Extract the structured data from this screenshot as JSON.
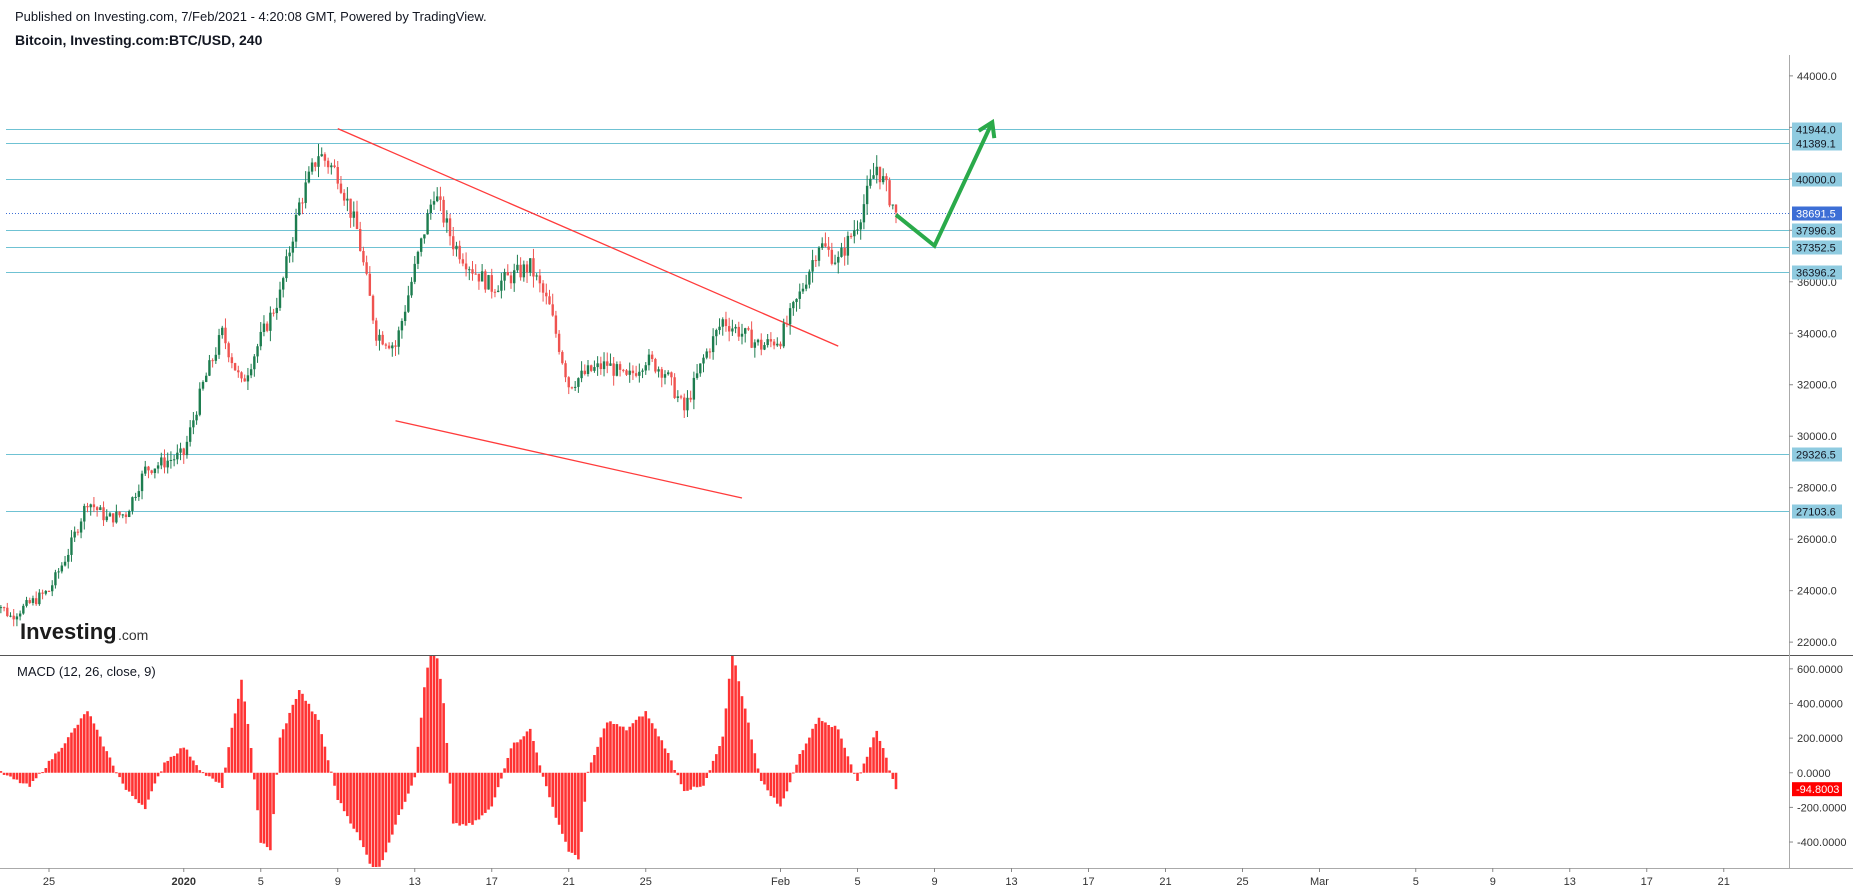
{
  "header": {
    "published": "Published on Investing.com, 7/Feb/2021 - 4:20:08 GMT, Powered by TradingView.",
    "symbol": "Bitcoin, Investing.com:BTC/USD, 240"
  },
  "logo": {
    "text": "Investing",
    "suffix": ".com"
  },
  "chart_data": [
    {
      "type": "candlestick",
      "title": "Bitcoin, Investing.com:BTC/USD, 240",
      "ylim": [
        21500,
        44500
      ],
      "y_ticks": [
        "44000.0",
        "42000.0",
        "40000.0",
        "38000.0",
        "36000.0",
        "34000.0",
        "32000.0",
        "30000.0",
        "28000.0",
        "26000.0",
        "24000.0",
        "22000.0"
      ],
      "x_ticks": [
        "25",
        "2020",
        "5",
        "9",
        "13",
        "17",
        "21",
        "25",
        "Feb",
        "5",
        "9",
        "13",
        "17",
        "21",
        "25",
        "Mar",
        "5",
        "9",
        "13",
        "17",
        "21",
        "25"
      ],
      "horizontal_levels": [
        {
          "label": "41944.0",
          "value": 41944.0
        },
        {
          "label": "41389.1",
          "value": 41389.1
        },
        {
          "label": "40000.0",
          "value": 40000.0
        },
        {
          "label": "37996.8",
          "value": 37996.8
        },
        {
          "label": "37352.5",
          "value": 37352.5
        },
        {
          "label": "36396.2",
          "value": 36396.2
        },
        {
          "label": "29326.5",
          "value": 29326.5
        },
        {
          "label": "27103.6",
          "value": 27103.6
        }
      ],
      "last_price": {
        "label": "38691.5",
        "value": 38691.5
      },
      "trendlines": [
        {
          "name": "upper",
          "from": {
            "x": "9",
            "y": 41950
          },
          "to": {
            "x": "Feb 4",
            "y": 33500
          }
        },
        {
          "name": "lower",
          "from": {
            "x": "12",
            "y": 30600
          },
          "to": {
            "x": "Jan 30",
            "y": 27600
          }
        }
      ],
      "projection_arrow": {
        "points": [
          {
            "x": "Feb 7",
            "y": 38600
          },
          {
            "x": "9",
            "y": 37400
          },
          {
            "x": "12",
            "y": 42200
          }
        ]
      },
      "price_path": [
        {
          "x": "Dec 22",
          "y": 23800
        },
        {
          "x": "Dec 23",
          "y": 23000
        },
        {
          "x": "Dec 25",
          "y": 24000
        },
        {
          "x": "Dec 26",
          "y": 25500
        },
        {
          "x": "Dec 27",
          "y": 27500
        },
        {
          "x": "Dec 28",
          "y": 26800
        },
        {
          "x": "Dec 29",
          "y": 27000
        },
        {
          "x": "Dec 30",
          "y": 28700
        },
        {
          "x": "Dec 31",
          "y": 29000
        },
        {
          "x": "Jan 1",
          "y": 29300
        },
        {
          "x": "Jan 2",
          "y": 32000
        },
        {
          "x": "Jan 3",
          "y": 34000
        },
        {
          "x": "Jan 4",
          "y": 32000
        },
        {
          "x": "Jan 5",
          "y": 33800
        },
        {
          "x": "Jan 6",
          "y": 35500
        },
        {
          "x": "Jan 7",
          "y": 39000
        },
        {
          "x": "Jan 8",
          "y": 41000
        },
        {
          "x": "Jan 9",
          "y": 40200
        },
        {
          "x": "Jan 10",
          "y": 38000
        },
        {
          "x": "Jan 11",
          "y": 34000
        },
        {
          "x": "Jan 12",
          "y": 33500
        },
        {
          "x": "Jan 13",
          "y": 36500
        },
        {
          "x": "Jan 14",
          "y": 39500
        },
        {
          "x": "Jan 15",
          "y": 37500
        },
        {
          "x": "Jan 16",
          "y": 36500
        },
        {
          "x": "Jan 17",
          "y": 35800
        },
        {
          "x": "Jan 18",
          "y": 36200
        },
        {
          "x": "Jan 19",
          "y": 36600
        },
        {
          "x": "Jan 20",
          "y": 35000
        },
        {
          "x": "Jan 21",
          "y": 32000
        },
        {
          "x": "Jan 22",
          "y": 32500
        },
        {
          "x": "Jan 23",
          "y": 32800
        },
        {
          "x": "Jan 24",
          "y": 32200
        },
        {
          "x": "Jan 25",
          "y": 33000
        },
        {
          "x": "Jan 26",
          "y": 32500
        },
        {
          "x": "Jan 27",
          "y": 31000
        },
        {
          "x": "Jan 28",
          "y": 33000
        },
        {
          "x": "Jan 29",
          "y": 34500
        },
        {
          "x": "Jan 30",
          "y": 34000
        },
        {
          "x": "Jan 31",
          "y": 33500
        },
        {
          "x": "Feb 1",
          "y": 33800
        },
        {
          "x": "Feb 2",
          "y": 35500
        },
        {
          "x": "Feb 3",
          "y": 37500
        },
        {
          "x": "Feb 4",
          "y": 36800
        },
        {
          "x": "Feb 5",
          "y": 38300
        },
        {
          "x": "Feb 6",
          "y": 40500
        },
        {
          "x": "Feb 7",
          "y": 38691.5
        }
      ]
    },
    {
      "type": "bar",
      "title": "MACD (12, 26, close, 9)",
      "ylim": [
        -550,
        680
      ],
      "y_ticks": [
        "600.0000",
        "400.0000",
        "200.0000",
        "0.0000",
        "-200.0000",
        "-400.0000"
      ],
      "last_value": {
        "label": "-94.8003",
        "value": -94.8003
      },
      "histogram_profile": [
        {
          "x": "Dec 22",
          "y": 30
        },
        {
          "x": "Dec 23",
          "y": -30
        },
        {
          "x": "Dec 24",
          "y": -80
        },
        {
          "x": "Dec 25",
          "y": 60
        },
        {
          "x": "Dec 26",
          "y": 200
        },
        {
          "x": "Dec 27",
          "y": 360
        },
        {
          "x": "Dec 28",
          "y": 120
        },
        {
          "x": "Dec 29",
          "y": -100
        },
        {
          "x": "Dec 30",
          "y": -200
        },
        {
          "x": "Dec 31",
          "y": 60
        },
        {
          "x": "Jan 1",
          "y": 150
        },
        {
          "x": "Jan 2",
          "y": 0
        },
        {
          "x": "Jan 3",
          "y": -80
        },
        {
          "x": "Jan 3.5",
          "y": 250
        },
        {
          "x": "Jan 4",
          "y": 530
        },
        {
          "x": "Jan 4.5",
          "y": 150
        },
        {
          "x": "Jan 5",
          "y": -400
        },
        {
          "x": "Jan 5.5",
          "y": -450
        },
        {
          "x": "Jan 6",
          "y": 200
        },
        {
          "x": "Jan 7",
          "y": 480
        },
        {
          "x": "Jan 8",
          "y": 300
        },
        {
          "x": "Jan 9",
          "y": -150
        },
        {
          "x": "Jan 10",
          "y": -350
        },
        {
          "x": "Jan 11",
          "y": -600
        },
        {
          "x": "Jan 12",
          "y": -300
        },
        {
          "x": "Jan 13",
          "y": -20
        },
        {
          "x": "Jan 13.5",
          "y": 500
        },
        {
          "x": "Jan 14",
          "y": 800
        },
        {
          "x": "Jan 14.5",
          "y": 400
        },
        {
          "x": "Jan 15",
          "y": -300
        },
        {
          "x": "Jan 16",
          "y": -300
        },
        {
          "x": "Jan 17",
          "y": -200
        },
        {
          "x": "Jan 18",
          "y": 150
        },
        {
          "x": "Jan 19",
          "y": 250
        },
        {
          "x": "Jan 20",
          "y": -150
        },
        {
          "x": "Jan 21",
          "y": -450
        },
        {
          "x": "Jan 21.5",
          "y": -500
        },
        {
          "x": "Jan 22",
          "y": 0
        },
        {
          "x": "Jan 23",
          "y": 300
        },
        {
          "x": "Jan 24",
          "y": 250
        },
        {
          "x": "Jan 25",
          "y": 350
        },
        {
          "x": "Jan 26",
          "y": 150
        },
        {
          "x": "Jan 27",
          "y": -100
        },
        {
          "x": "Jan 28",
          "y": -80
        },
        {
          "x": "Jan 29",
          "y": 200
        },
        {
          "x": "Jan 29.5",
          "y": 700
        },
        {
          "x": "Jan 30",
          "y": 450
        },
        {
          "x": "Jan 31",
          "y": -50
        },
        {
          "x": "Feb 1",
          "y": -200
        },
        {
          "x": "Feb 2",
          "y": 100
        },
        {
          "x": "Feb 3",
          "y": 320
        },
        {
          "x": "Feb 4",
          "y": 250
        },
        {
          "x": "Feb 5",
          "y": -50
        },
        {
          "x": "Feb 6",
          "y": 250
        },
        {
          "x": "Feb 7",
          "y": -94.8
        }
      ]
    }
  ],
  "colors": {
    "up": "#26a69a",
    "up_dark": "#1d7d4f",
    "down": "#ef5350",
    "level_line": "#6fc2d3",
    "level_tag": "#8fcbe0",
    "last_price_tag": "#3d6fd6",
    "trendline": "#ff3b3b",
    "arrow": "#2aaa4a",
    "macd": "#ff3333",
    "axis": "#333333",
    "separator": "#555555"
  }
}
